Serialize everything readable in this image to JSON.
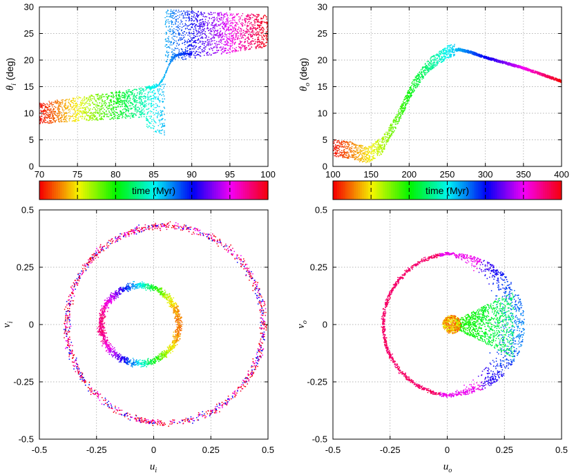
{
  "chart_data": [
    {
      "id": "theta_i",
      "type": "scatter",
      "xlabel": "",
      "ylabel": "θ_i (deg)",
      "xlim": [
        70,
        100
      ],
      "ylim": [
        0,
        30
      ],
      "xticks": [
        70,
        75,
        80,
        85,
        90,
        95,
        100
      ],
      "yticks": [
        0,
        5,
        10,
        15,
        20,
        25,
        30
      ],
      "colorbar": {
        "label": "time (Myr)",
        "time_range": [
          70,
          100
        ]
      },
      "bands": [
        {
          "x0": 70,
          "x1": 86.5,
          "lower": [
            8.0,
            9.5
          ],
          "upper": [
            12.0,
            15.5
          ],
          "scatter_tail": [
            5.5,
            15.5
          ]
        },
        {
          "x0": 86.5,
          "x1": 100,
          "lower": [
            19.5,
            22.5
          ],
          "upper": [
            29.5,
            28.5
          ]
        }
      ]
    },
    {
      "id": "theta_o",
      "type": "scatter",
      "xlabel": "",
      "ylabel": "θ_o (deg)",
      "xlim": [
        100,
        400
      ],
      "ylim": [
        0,
        30
      ],
      "xticks": [
        100,
        150,
        200,
        250,
        300,
        350,
        400
      ],
      "yticks": [
        0,
        5,
        10,
        15,
        20,
        25,
        30
      ],
      "colorbar": {
        "label": "time (Myr)",
        "time_range": [
          100,
          400
        ]
      },
      "curve": [
        [
          100,
          3.5
        ],
        [
          125,
          3
        ],
        [
          145,
          2
        ],
        [
          165,
          4
        ],
        [
          185,
          9
        ],
        [
          205,
          15
        ],
        [
          225,
          19
        ],
        [
          250,
          21.5
        ],
        [
          265,
          22
        ],
        [
          280,
          21.5
        ],
        [
          300,
          20.5
        ],
        [
          350,
          18.5
        ],
        [
          400,
          16
        ]
      ]
    },
    {
      "id": "uv_i",
      "type": "scatter",
      "xlabel": "u_i",
      "ylabel": "v_i",
      "xlim": [
        -0.5,
        0.5
      ],
      "ylim": [
        -0.5,
        0.5
      ],
      "xticks": [
        -0.5,
        -0.25,
        0,
        0.25,
        0.5
      ],
      "yticks": [
        -0.5,
        -0.25,
        0,
        0.25,
        0.5
      ],
      "xtick_labels": [
        "-0.5",
        "-0.25",
        "0",
        "0.25",
        "0.5"
      ],
      "ytick_labels": [
        "-0.5",
        "-0.25",
        "0",
        "0.25",
        "0.5"
      ],
      "rings": [
        {
          "cx": 0.05,
          "cy": 0.0,
          "r": 0.43
        },
        {
          "cx": -0.06,
          "cy": 0.0,
          "r": 0.17
        }
      ]
    },
    {
      "id": "uv_o",
      "type": "scatter",
      "xlabel": "u_o",
      "ylabel": "v_o",
      "xlim": [
        -0.5,
        0.5
      ],
      "ylim": [
        -0.5,
        0.5
      ],
      "xticks": [
        -0.5,
        -0.25,
        0,
        0.25,
        0.5
      ],
      "yticks": [
        -0.5,
        -0.25,
        0,
        0.25,
        0.5
      ],
      "xtick_labels": [
        "-0.5",
        "-0.25",
        "0",
        "0.25",
        "0.5"
      ],
      "ytick_labels": [
        "-0.5",
        "-0.25",
        "0",
        "0.25",
        "0.5"
      ],
      "rings": [
        {
          "cx": 0.03,
          "cy": 0.0,
          "r": 0.31
        }
      ],
      "core": {
        "cx": 0.02,
        "cy": 0.0,
        "r": 0.04
      }
    }
  ]
}
